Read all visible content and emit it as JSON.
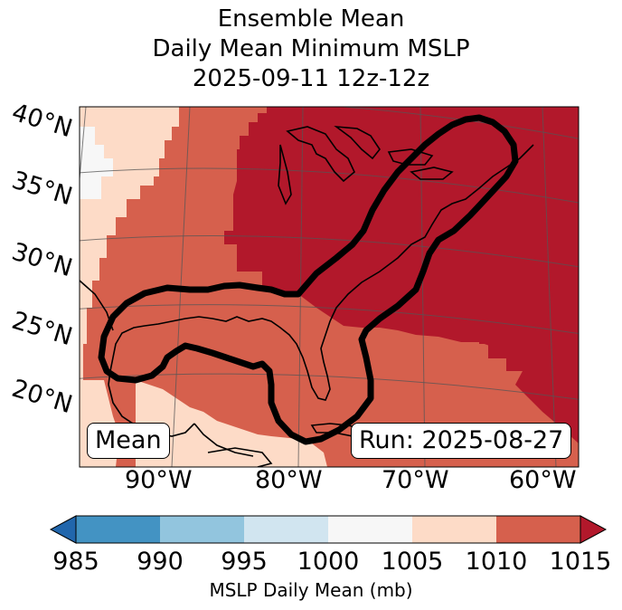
{
  "title": {
    "line1": "Ensemble Mean",
    "line2": "Daily Mean Minimum MSLP",
    "line3": "2025-09-11 12z-12z"
  },
  "map": {
    "lat_labels": [
      "40°N",
      "35°N",
      "30°N",
      "25°N",
      "20°N"
    ],
    "lon_labels": [
      "90°W",
      "80°W",
      "70°W",
      "60°W"
    ],
    "mean_box": "Mean",
    "run_box": "Run: 2025-08-27"
  },
  "colorbar": {
    "ticks": [
      "985",
      "990",
      "995",
      "1000",
      "1005",
      "1010",
      "1015"
    ],
    "label": "MSLP Daily Mean (mb)",
    "colors": {
      "below": "#2166ac",
      "985-990": "#4393c3",
      "990-995": "#92c5de",
      "995-1000": "#d1e5f0",
      "1000-1005": "#f7f7f7",
      "1005-1010": "#fddbc7",
      "1010-1015": "#d6604d",
      "above": "#b2182b"
    }
  }
}
